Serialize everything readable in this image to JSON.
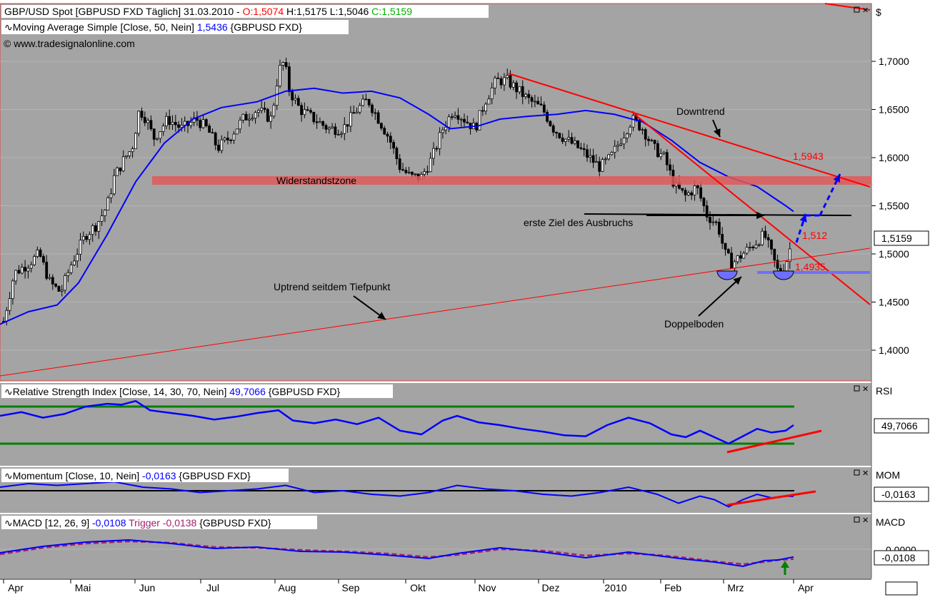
{
  "colors": {
    "panel_bg": "#a4a4a4",
    "price": "#000000",
    "ma": "#0000ff",
    "trend": "#ff0000",
    "zone": "#e05a5a",
    "rsi_band": "#008000",
    "macd_trigger": "#a0206e",
    "support": "#6f6fff"
  },
  "header": {
    "symbol_prefix": "GBP/USD Spot [GBPUSD FXD  Täglich] 31.03.2010 - ",
    "open": "O:1,5074",
    "high_low": " H:1,5175 L:1,5046 ",
    "close": "C:1,5159",
    "ma_prefix": "Moving Average Simple [Close, 50, Nein] ",
    "ma_value": "1,5436",
    "ma_suffix": " {GBPUSD FXD}",
    "copyright": "© www.tradesignalonline.com"
  },
  "right_axis": {
    "currency": "$",
    "last_price": "1,5159"
  },
  "annotations": {
    "downtrend": "Downtrend",
    "target_value": "1,5943",
    "resistance_zone": "Widerstandstzone",
    "first_target": "erste Ziel des Ausbruchs",
    "breakout_level": "1,512",
    "support_level": "1,4935",
    "uptrend": "Uptrend seitdem Tiefpunkt",
    "double_bottom": "Doppelboden"
  },
  "rsi": {
    "prefix": "Relative Strength Index [Close, 14, 30, 70, Nein] ",
    "value": "49,7066",
    "suffix": " {GBPUSD FXD}",
    "axis_label": "RSI",
    "badge": "49,7066"
  },
  "momentum": {
    "prefix": "Momentum [Close, 10, Nein] ",
    "value": "-0,0163",
    "suffix": " {GBPUSD FXD}",
    "axis_label": "MOM",
    "badge": "-0,0163"
  },
  "macd": {
    "prefix": "MACD [12, 26, 9] ",
    "value": "-0,0108",
    "trigger_label": " Trigger ",
    "trigger_value": "-0,0138",
    "suffix": " {GBPUSD FXD}",
    "axis_label": "MACD",
    "zero_tick": "0,0000",
    "badge": "-0,0108"
  },
  "chart_data": {
    "type": "candlestick",
    "x_tick_labels": [
      "Apr",
      "Mai",
      "Jun",
      "Jul",
      "Aug",
      "Sep",
      "Okt",
      "Nov",
      "Dez",
      "2010",
      "Feb",
      "Mrz",
      "Apr"
    ],
    "y_tick_labels": [
      "1,7000",
      "1,6500",
      "1,6000",
      "1,5500",
      "1,5000",
      "1,4500",
      "1,4000"
    ],
    "y_ticks": [
      1.7,
      1.65,
      1.6,
      1.55,
      1.5,
      1.45,
      1.4
    ],
    "ylim": [
      1.375,
      1.75
    ],
    "ma_points": [
      [
        0,
        1.427
      ],
      [
        40,
        1.44
      ],
      [
        80,
        1.447
      ],
      [
        110,
        1.47
      ],
      [
        150,
        1.52
      ],
      [
        190,
        1.575
      ],
      [
        230,
        1.615
      ],
      [
        270,
        1.64
      ],
      [
        310,
        1.652
      ],
      [
        360,
        1.658
      ],
      [
        400,
        1.669
      ],
      [
        440,
        1.672
      ],
      [
        480,
        1.667
      ],
      [
        520,
        1.669
      ],
      [
        560,
        1.662
      ],
      [
        600,
        1.645
      ],
      [
        630,
        1.63
      ],
      [
        670,
        1.633
      ],
      [
        700,
        1.64
      ],
      [
        740,
        1.643
      ],
      [
        780,
        1.645
      ],
      [
        820,
        1.649
      ],
      [
        860,
        1.645
      ],
      [
        900,
        1.637
      ],
      [
        940,
        1.618
      ],
      [
        980,
        1.595
      ],
      [
        1020,
        1.58
      ],
      [
        1060,
        1.57
      ],
      [
        1080,
        1.56
      ],
      [
        1100,
        1.55
      ],
      [
        1111,
        1.544
      ]
    ],
    "close_path": [
      [
        5,
        1.43
      ],
      [
        20,
        1.48
      ],
      [
        40,
        1.49
      ],
      [
        55,
        1.5
      ],
      [
        70,
        1.47
      ],
      [
        85,
        1.46
      ],
      [
        100,
        1.49
      ],
      [
        120,
        1.52
      ],
      [
        135,
        1.53
      ],
      [
        150,
        1.55
      ],
      [
        160,
        1.58
      ],
      [
        175,
        1.6
      ],
      [
        185,
        1.61
      ],
      [
        195,
        1.65
      ],
      [
        205,
        1.64
      ],
      [
        215,
        1.62
      ],
      [
        235,
        1.64
      ],
      [
        255,
        1.63
      ],
      [
        275,
        1.64
      ],
      [
        290,
        1.63
      ],
      [
        305,
        1.61
      ],
      [
        320,
        1.62
      ],
      [
        340,
        1.64
      ],
      [
        360,
        1.65
      ],
      [
        380,
        1.64
      ],
      [
        390,
        1.69
      ],
      [
        398,
        1.7
      ],
      [
        405,
        1.67
      ],
      [
        420,
        1.65
      ],
      [
        440,
        1.64
      ],
      [
        460,
        1.63
      ],
      [
        480,
        1.63
      ],
      [
        500,
        1.65
      ],
      [
        515,
        1.66
      ],
      [
        530,
        1.64
      ],
      [
        545,
        1.62
      ],
      [
        560,
        1.59
      ],
      [
        575,
        1.58
      ],
      [
        590,
        1.58
      ],
      [
        605,
        1.6
      ],
      [
        620,
        1.63
      ],
      [
        635,
        1.65
      ],
      [
        650,
        1.64
      ],
      [
        665,
        1.63
      ],
      [
        680,
        1.66
      ],
      [
        695,
        1.68
      ],
      [
        710,
        1.68
      ],
      [
        725,
        1.67
      ],
      [
        740,
        1.66
      ],
      [
        760,
        1.65
      ],
      [
        775,
        1.63
      ],
      [
        790,
        1.62
      ],
      [
        810,
        1.61
      ],
      [
        825,
        1.6
      ],
      [
        840,
        1.59
      ],
      [
        855,
        1.6
      ],
      [
        870,
        1.62
      ],
      [
        885,
        1.64
      ],
      [
        900,
        1.63
      ],
      [
        915,
        1.61
      ],
      [
        930,
        1.6
      ],
      [
        945,
        1.57
      ],
      [
        960,
        1.56
      ],
      [
        975,
        1.57
      ],
      [
        990,
        1.54
      ],
      [
        1005,
        1.53
      ],
      [
        1015,
        1.5
      ],
      [
        1025,
        1.49
      ],
      [
        1040,
        1.5
      ],
      [
        1055,
        1.51
      ],
      [
        1070,
        1.52
      ],
      [
        1080,
        1.5
      ],
      [
        1090,
        1.48
      ],
      [
        1100,
        1.49
      ],
      [
        1110,
        1.516
      ]
    ],
    "rsi_points": [
      [
        0,
        60
      ],
      [
        30,
        64
      ],
      [
        60,
        58
      ],
      [
        90,
        62
      ],
      [
        120,
        70
      ],
      [
        150,
        73
      ],
      [
        170,
        72
      ],
      [
        190,
        76
      ],
      [
        210,
        66
      ],
      [
        240,
        63
      ],
      [
        270,
        60
      ],
      [
        300,
        56
      ],
      [
        330,
        59
      ],
      [
        360,
        63
      ],
      [
        390,
        66
      ],
      [
        410,
        55
      ],
      [
        440,
        52
      ],
      [
        470,
        56
      ],
      [
        500,
        51
      ],
      [
        530,
        58
      ],
      [
        560,
        44
      ],
      [
        590,
        40
      ],
      [
        620,
        55
      ],
      [
        640,
        60
      ],
      [
        670,
        53
      ],
      [
        700,
        50
      ],
      [
        730,
        46
      ],
      [
        760,
        43
      ],
      [
        790,
        39
      ],
      [
        820,
        38
      ],
      [
        850,
        50
      ],
      [
        880,
        58
      ],
      [
        910,
        52
      ],
      [
        940,
        40
      ],
      [
        960,
        37
      ],
      [
        980,
        44
      ],
      [
        1000,
        37
      ],
      [
        1020,
        30
      ],
      [
        1040,
        38
      ],
      [
        1060,
        46
      ],
      [
        1080,
        42
      ],
      [
        1100,
        44
      ],
      [
        1111,
        50
      ]
    ],
    "rsi_bands": [
      30,
      70
    ],
    "mom_points": [
      [
        0,
        0.01
      ],
      [
        40,
        0.02
      ],
      [
        80,
        0.015
      ],
      [
        120,
        0.02
      ],
      [
        160,
        0.025
      ],
      [
        200,
        0.01
      ],
      [
        240,
        0.005
      ],
      [
        280,
        -0.005
      ],
      [
        320,
        0.0
      ],
      [
        360,
        0.005
      ],
      [
        400,
        0.015
      ],
      [
        440,
        -0.005
      ],
      [
        480,
        0.0
      ],
      [
        520,
        -0.01
      ],
      [
        560,
        -0.015
      ],
      [
        600,
        -0.005
      ],
      [
        640,
        0.015
      ],
      [
        680,
        0.005
      ],
      [
        720,
        0.0
      ],
      [
        760,
        -0.01
      ],
      [
        800,
        -0.015
      ],
      [
        840,
        -0.005
      ],
      [
        880,
        0.01
      ],
      [
        920,
        -0.01
      ],
      [
        950,
        -0.035
      ],
      [
        980,
        -0.015
      ],
      [
        1000,
        -0.025
      ],
      [
        1020,
        -0.045
      ],
      [
        1040,
        -0.025
      ],
      [
        1060,
        -0.01
      ],
      [
        1080,
        -0.02
      ],
      [
        1100,
        -0.015
      ],
      [
        1111,
        -0.016
      ]
    ],
    "macd_points": [
      [
        0,
        -0.005
      ],
      [
        60,
        0.004
      ],
      [
        120,
        0.01
      ],
      [
        180,
        0.013
      ],
      [
        240,
        0.008
      ],
      [
        300,
        0.001
      ],
      [
        360,
        0.003
      ],
      [
        420,
        -0.003
      ],
      [
        480,
        -0.004
      ],
      [
        540,
        -0.008
      ],
      [
        600,
        -0.013
      ],
      [
        640,
        -0.006
      ],
      [
        700,
        0.002
      ],
      [
        760,
        -0.004
      ],
      [
        820,
        -0.012
      ],
      [
        880,
        -0.004
      ],
      [
        920,
        -0.009
      ],
      [
        960,
        -0.014
      ],
      [
        1000,
        -0.018
      ],
      [
        1040,
        -0.024
      ],
      [
        1070,
        -0.016
      ],
      [
        1090,
        -0.015
      ],
      [
        1111,
        -0.0108
      ]
    ],
    "trigger_points": [
      [
        0,
        -0.007
      ],
      [
        60,
        0.002
      ],
      [
        120,
        0.008
      ],
      [
        180,
        0.011
      ],
      [
        240,
        0.009
      ],
      [
        300,
        0.003
      ],
      [
        360,
        0.002
      ],
      [
        420,
        -0.001
      ],
      [
        480,
        -0.003
      ],
      [
        540,
        -0.006
      ],
      [
        600,
        -0.011
      ],
      [
        640,
        -0.008
      ],
      [
        700,
        0.0
      ],
      [
        760,
        -0.002
      ],
      [
        820,
        -0.009
      ],
      [
        880,
        -0.006
      ],
      [
        920,
        -0.008
      ],
      [
        960,
        -0.012
      ],
      [
        1000,
        -0.017
      ],
      [
        1040,
        -0.021
      ],
      [
        1070,
        -0.018
      ],
      [
        1090,
        -0.015
      ],
      [
        1111,
        -0.0138
      ]
    ]
  }
}
